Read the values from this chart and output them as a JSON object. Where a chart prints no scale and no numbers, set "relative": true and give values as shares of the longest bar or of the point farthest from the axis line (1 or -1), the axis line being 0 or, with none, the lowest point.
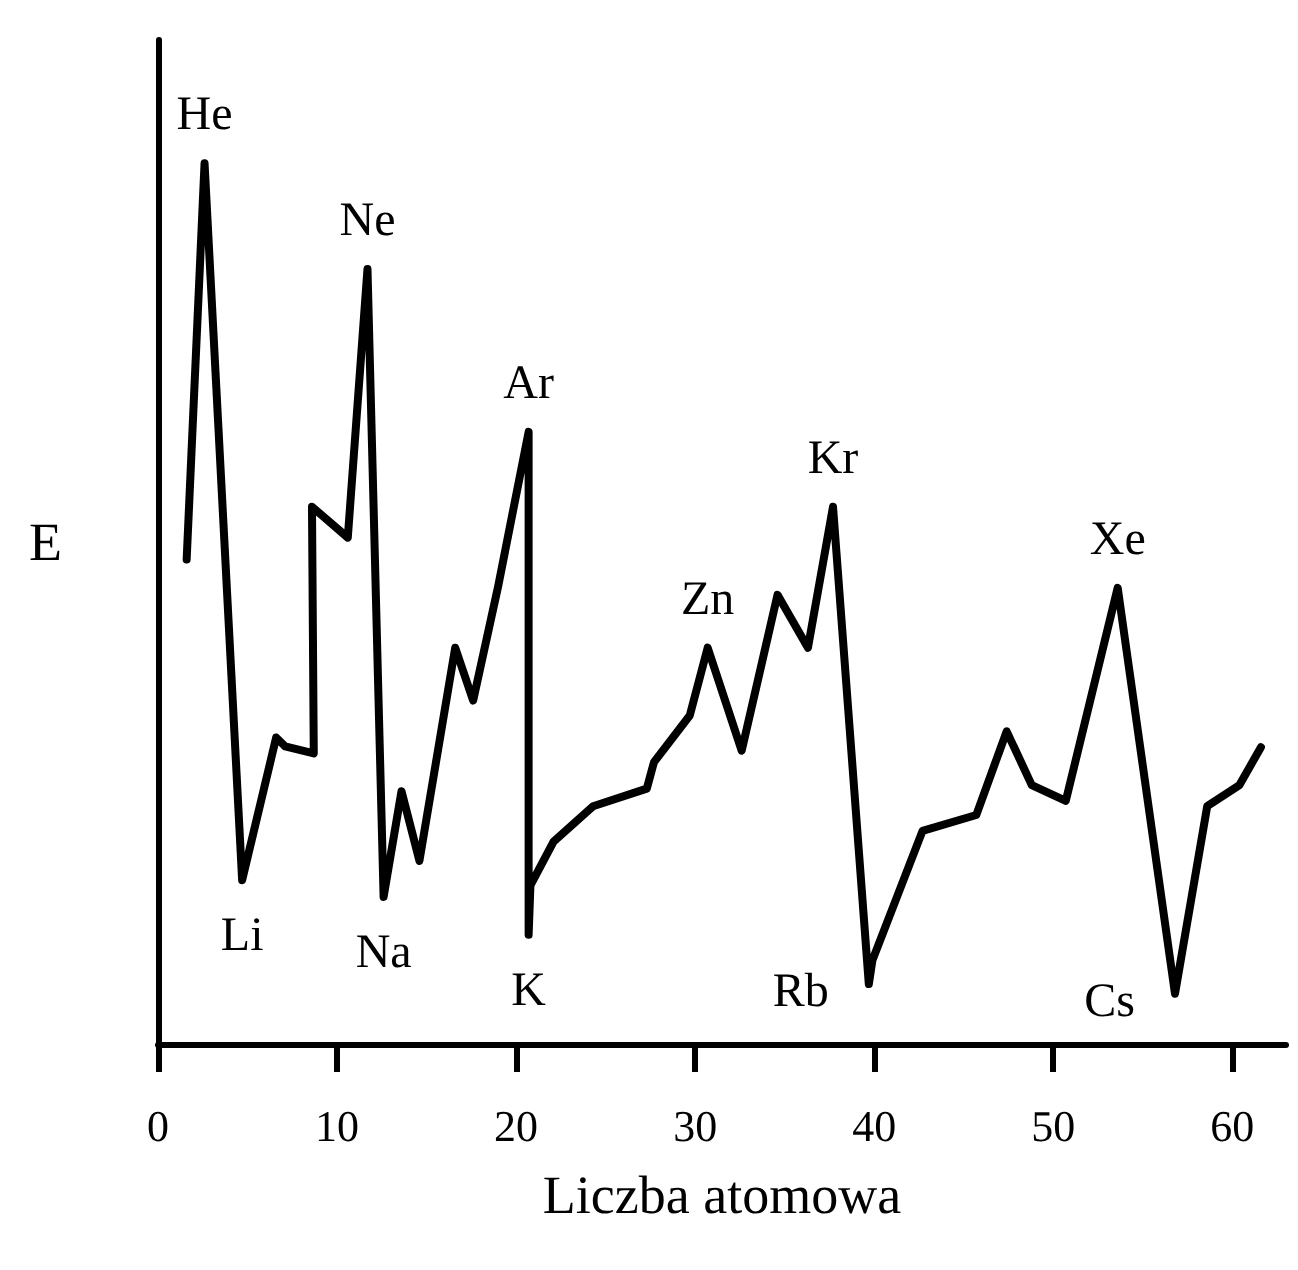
{
  "chart_data": {
    "type": "line",
    "xlabel": "Liczba atomowa",
    "ylabel": "E",
    "relative": true,
    "xlim": [
      0,
      63
    ],
    "xticks": [
      0,
      10,
      20,
      30,
      40,
      50,
      60
    ],
    "grid": false,
    "marker": "none",
    "line_style": "solid",
    "series": [
      {
        "color": "#000000",
        "x": [
          1.6,
          2.6,
          4.7,
          6.6,
          7.1,
          8.7,
          8.6,
          10.6,
          11.7,
          12.6,
          13.6,
          14.6,
          16.6,
          17.6,
          19,
          20.7,
          20.7,
          20.8,
          22.1,
          24.3,
          27.3,
          27.7,
          29.7,
          30.7,
          32.6,
          34.6,
          36.3,
          37.7,
          39.7,
          39.9,
          42.7,
          45.7,
          47.4,
          48.8,
          50.7,
          53.6,
          56.8,
          58.6,
          60.4,
          61.6
        ],
        "values": [
          0.55,
          1.0,
          0.186,
          0.348,
          0.338,
          0.33,
          0.61,
          0.575,
          0.88,
          0.167,
          0.287,
          0.208,
          0.45,
          0.39,
          0.52,
          0.695,
          0.124,
          0.18,
          0.23,
          0.27,
          0.29,
          0.32,
          0.373,
          0.45,
          0.333,
          0.51,
          0.45,
          0.61,
          0.068,
          0.095,
          0.242,
          0.26,
          0.355,
          0.294,
          0.276,
          0.518,
          0.057,
          0.27,
          0.294,
          0.337
        ]
      }
    ],
    "annotations": [
      {
        "text": "He",
        "x": 2.6,
        "y": 1.0
      },
      {
        "text": "Li",
        "x": 4.7,
        "y": 0.186
      },
      {
        "text": "Ne",
        "x": 11.7,
        "y": 0.88
      },
      {
        "text": "Na",
        "x": 12.6,
        "y": 0.167
      },
      {
        "text": "Ar",
        "x": 20.7,
        "y": 0.695
      },
      {
        "text": "K",
        "x": 20.7,
        "y": 0.124
      },
      {
        "text": "Zn",
        "x": 30.7,
        "y": 0.45
      },
      {
        "text": "Kr",
        "x": 37.7,
        "y": 0.61
      },
      {
        "text": "Rb",
        "x": 39.7,
        "y": 0.068
      },
      {
        "text": "Xe",
        "x": 53.6,
        "y": 0.518
      },
      {
        "text": "Cs",
        "x": 56.8,
        "y": 0.057
      }
    ]
  }
}
